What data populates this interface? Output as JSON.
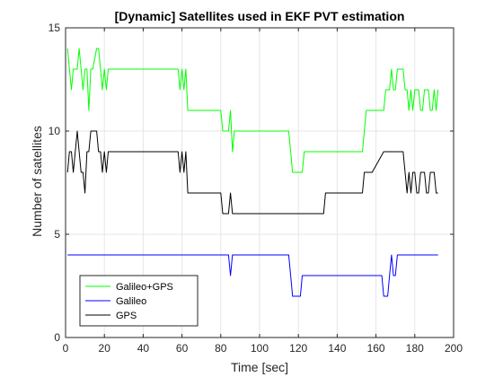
{
  "chart_data": {
    "type": "line",
    "title": "[Dynamic] Satellites used in EKF PVT estimation",
    "xlabel": "Time [sec]",
    "ylabel": "Number of satellites",
    "xlim": [
      0,
      200
    ],
    "ylim": [
      0,
      15
    ],
    "xticks": [
      "0",
      "20",
      "40",
      "60",
      "80",
      "100",
      "120",
      "140",
      "160",
      "180",
      "200"
    ],
    "yticks": [
      "0",
      "5",
      "10",
      "15"
    ],
    "grid": true,
    "legend_position": "bottom-left",
    "series": [
      {
        "name": "Galileo+GPS",
        "color": "#00ff00",
        "x": [
          1,
          2,
          3,
          4,
          5,
          6,
          7,
          8,
          9,
          10,
          11,
          12,
          13,
          14,
          16,
          17,
          18,
          19,
          20,
          21,
          22,
          23,
          24,
          25,
          26,
          58,
          59,
          60,
          61,
          62,
          63,
          64,
          80,
          81,
          82,
          83,
          84,
          85,
          86,
          87,
          115,
          116,
          117,
          118,
          119,
          122,
          123,
          124,
          153,
          154,
          155,
          156,
          157,
          158,
          164,
          165,
          166,
          167,
          168,
          169,
          170,
          171,
          172,
          173,
          174,
          175,
          176,
          177,
          178,
          179,
          180,
          181,
          182,
          183,
          184,
          185,
          186,
          187,
          188,
          189,
          190,
          191,
          192
        ],
        "y": [
          14,
          13,
          12,
          13,
          13,
          13,
          14,
          13,
          12,
          13,
          13,
          11,
          13,
          13,
          14,
          14,
          13,
          12,
          13,
          12,
          13,
          13,
          13,
          13,
          13,
          13,
          12,
          13,
          12,
          13,
          11,
          11,
          11,
          10,
          10,
          10,
          10,
          11,
          9,
          10,
          10,
          9,
          8,
          8,
          8,
          8,
          9,
          9,
          9,
          10,
          11,
          11,
          11,
          11,
          11,
          12,
          12,
          12,
          13,
          12,
          12,
          13,
          13,
          13,
          13,
          12,
          12,
          11,
          12,
          11,
          12,
          12,
          12,
          11,
          11,
          12,
          12,
          12,
          11,
          11,
          12,
          11,
          12
        ]
      },
      {
        "name": "Galileo",
        "color": "#0000ff",
        "x": [
          1,
          84,
          85,
          86,
          87,
          115,
          116,
          117,
          118,
          119,
          120,
          121,
          122,
          123,
          124,
          163,
          164,
          165,
          166,
          167,
          168,
          169,
          170,
          171,
          172,
          192
        ],
        "y": [
          4,
          4,
          3,
          4,
          4,
          4,
          3,
          2,
          2,
          2,
          2,
          2,
          3,
          3,
          3,
          3,
          2,
          2,
          2,
          3,
          4,
          3,
          3,
          4,
          4,
          4
        ]
      },
      {
        "name": "GPS",
        "color": "#000000",
        "x": [
          1,
          2,
          3,
          4,
          5,
          6,
          7,
          8,
          9,
          10,
          11,
          12,
          13,
          14,
          16,
          17,
          18,
          19,
          20,
          21,
          22,
          23,
          24,
          25,
          26,
          58,
          59,
          60,
          61,
          62,
          63,
          64,
          80,
          81,
          82,
          83,
          84,
          85,
          86,
          87,
          133,
          134,
          135,
          153,
          154,
          155,
          156,
          157,
          158,
          164,
          165,
          166,
          167,
          168,
          169,
          170,
          171,
          172,
          173,
          174,
          175,
          176,
          177,
          178,
          179,
          180,
          181,
          182,
          183,
          184,
          185,
          186,
          187,
          188,
          189,
          190,
          191,
          192
        ],
        "y": [
          8,
          9,
          9,
          8,
          9,
          10,
          9,
          8,
          8,
          7,
          9,
          9,
          10,
          10,
          10,
          9,
          9,
          8,
          9,
          8,
          9,
          9,
          9,
          9,
          9,
          9,
          8,
          9,
          8,
          9,
          7,
          7,
          7,
          6,
          6,
          6,
          6,
          7,
          6,
          6,
          6,
          7,
          7,
          7,
          8,
          8,
          8,
          8,
          8,
          9,
          9,
          9,
          9,
          9,
          9,
          9,
          9,
          9,
          9,
          9,
          8,
          7,
          8,
          7,
          8,
          8,
          7,
          7,
          8,
          8,
          8,
          7,
          7,
          8,
          8,
          8,
          7,
          7
        ]
      }
    ]
  }
}
